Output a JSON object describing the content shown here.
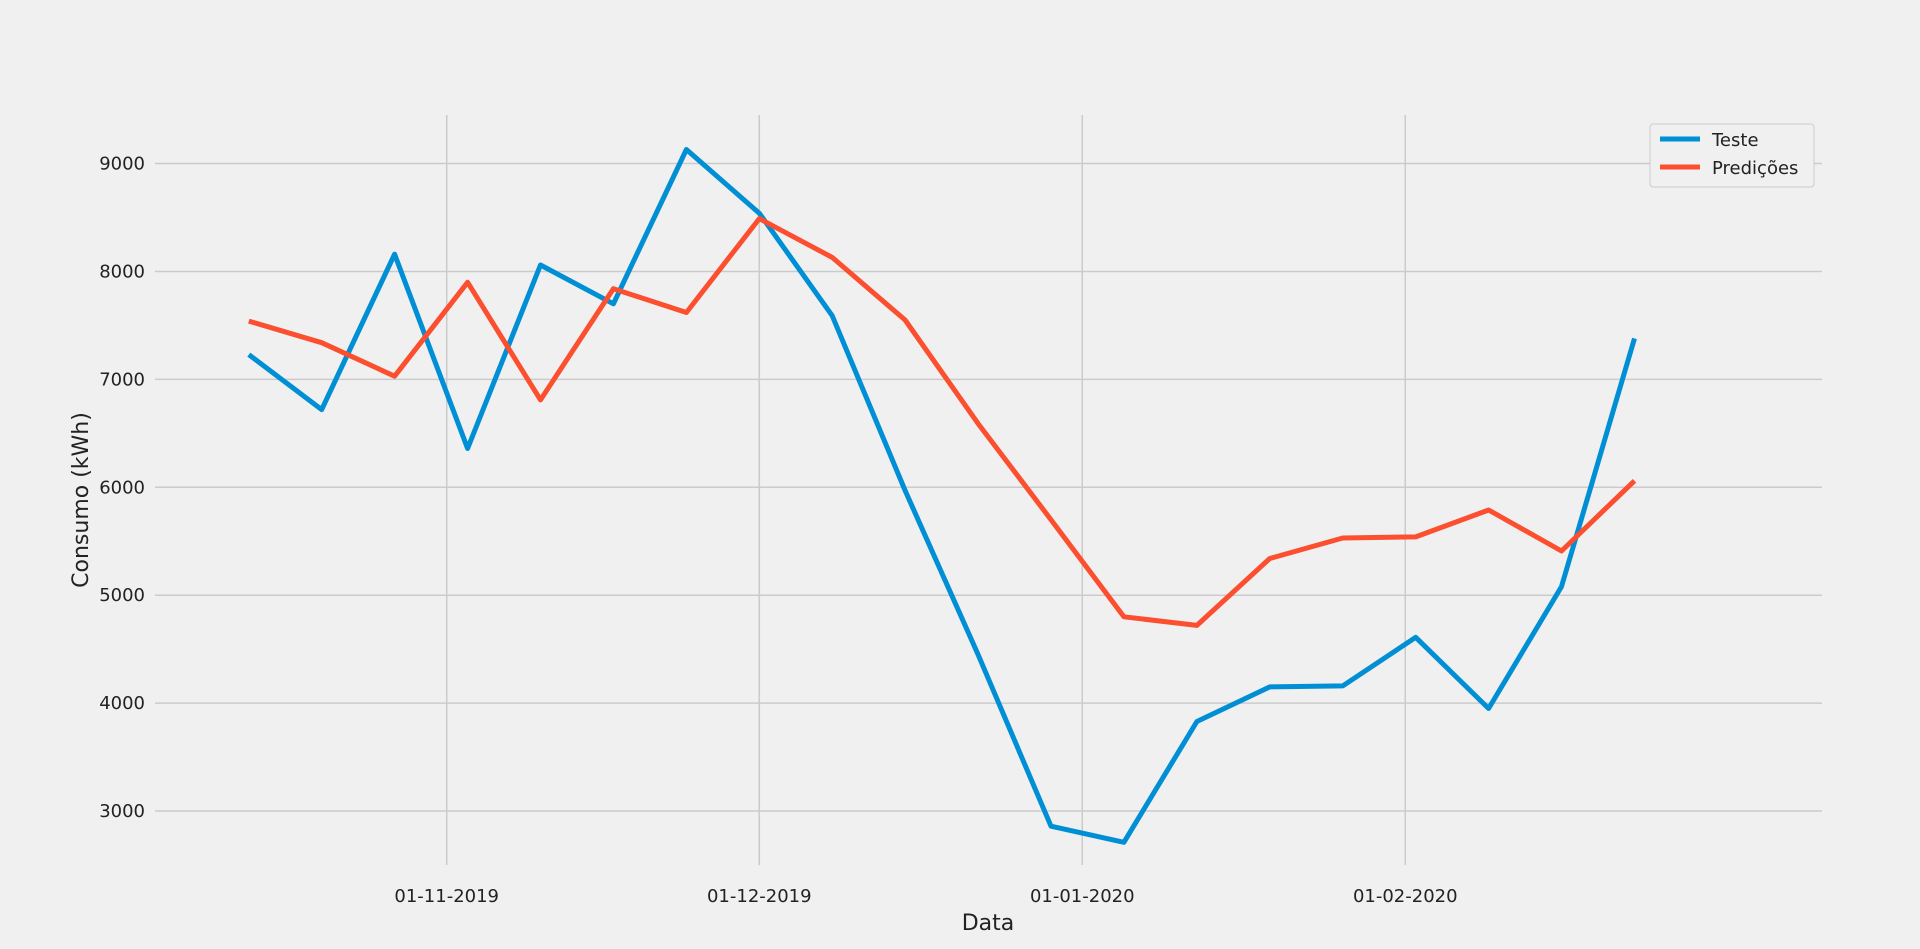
{
  "chart_data": {
    "type": "line",
    "title": "",
    "xlabel": "Data",
    "ylabel": "Consumo (kWh)",
    "ylim": [
      2500,
      9450
    ],
    "xlim": [
      "2019-10-04",
      "2020-03-12"
    ],
    "yticks": [
      3000,
      4000,
      5000,
      6000,
      7000,
      8000,
      9000
    ],
    "xticks": [
      {
        "date": "2019-11-01",
        "label": "01-11-2019"
      },
      {
        "date": "2019-12-01",
        "label": "01-12-2019"
      },
      {
        "date": "2020-01-01",
        "label": "01-01-2020"
      },
      {
        "date": "2020-02-01",
        "label": "01-02-2020"
      }
    ],
    "grid": true,
    "legend_position": "top-right",
    "x": [
      "2019-10-13",
      "2019-10-20",
      "2019-10-27",
      "2019-11-03",
      "2019-11-10",
      "2019-11-17",
      "2019-11-24",
      "2019-12-01",
      "2019-12-08",
      "2019-12-15",
      "2019-12-22",
      "2019-12-29",
      "2020-01-05",
      "2020-01-12",
      "2020-01-19",
      "2020-01-26",
      "2020-02-02",
      "2020-02-09",
      "2020-02-16",
      "2020-02-23"
    ],
    "series": [
      {
        "name": "Teste",
        "color": "#008fd5",
        "values": [
          7230,
          6720,
          8160,
          6360,
          8060,
          7700,
          9130,
          8540,
          7590,
          5970,
          4450,
          2860,
          2710,
          3830,
          4150,
          4160,
          4610,
          3950,
          5080,
          7380
        ]
      },
      {
        "name": "Predições",
        "color": "#fc4f30",
        "values": [
          7540,
          7340,
          7030,
          7900,
          6810,
          7840,
          7620,
          8490,
          8130,
          7550,
          6590,
          5700,
          4800,
          4720,
          5340,
          5530,
          5540,
          5790,
          5410,
          6060
        ]
      }
    ]
  }
}
